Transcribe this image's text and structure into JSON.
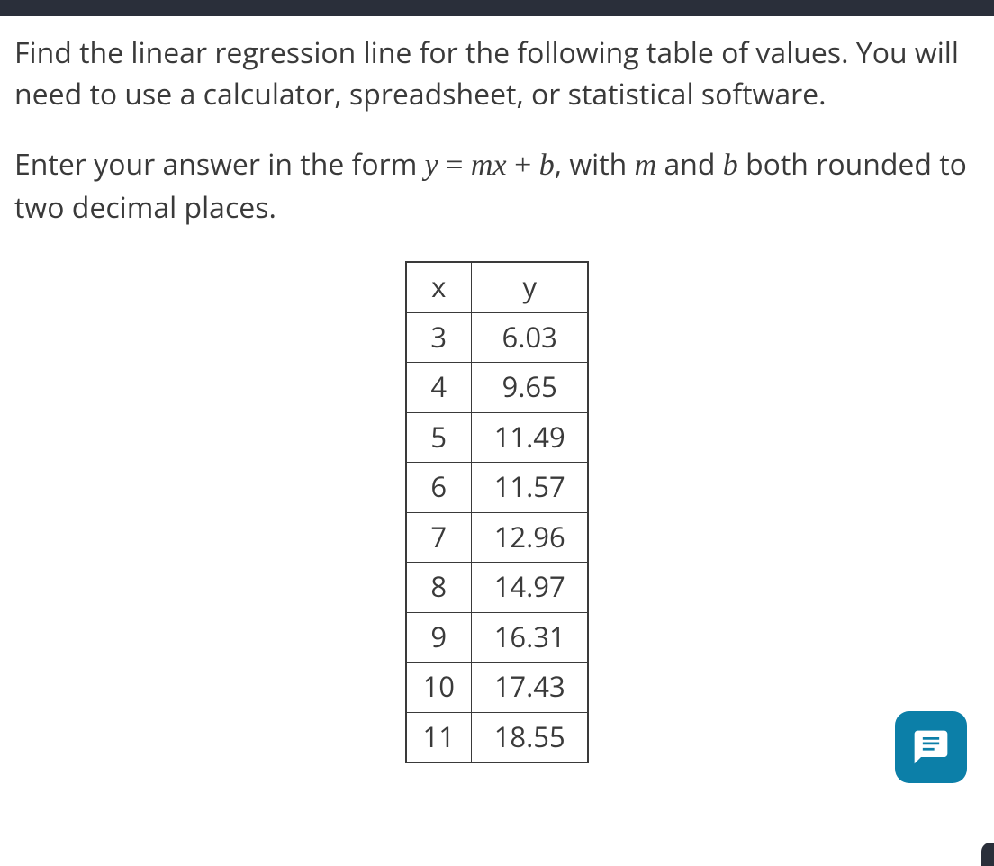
{
  "question": {
    "paragraph1": "Find the linear regression line for the following table of values. You will need to use a calculator, spreadsheet, or statistical software.",
    "paragraph2_prefix": "Enter your answer in the form ",
    "equation": {
      "y": "y",
      "eq": " = ",
      "mx": "mx",
      "plus": " + ",
      "b": "b"
    },
    "paragraph2_mid": ", with ",
    "m_var": "m",
    "paragraph2_and": " and ",
    "b_var": "b",
    "paragraph2_suffix": " both rounded to two decimal places."
  },
  "table": {
    "headers": {
      "x": "x",
      "y": "y"
    },
    "rows": [
      {
        "x": "3",
        "y": "6.03"
      },
      {
        "x": "4",
        "y": "9.65"
      },
      {
        "x": "5",
        "y": "11.49"
      },
      {
        "x": "6",
        "y": "11.57"
      },
      {
        "x": "7",
        "y": "12.96"
      },
      {
        "x": "8",
        "y": "14.97"
      },
      {
        "x": "9",
        "y": "16.31"
      },
      {
        "x": "10",
        "y": "17.43"
      },
      {
        "x": "11",
        "y": "18.55"
      }
    ]
  },
  "colors": {
    "topbar": "#2a2f3a",
    "text": "#3a3a3a",
    "table_border": "#3a3a3a",
    "chat_bg": "#0c7fa8",
    "chat_icon": "#ffffff",
    "background": "#ffffff"
  }
}
